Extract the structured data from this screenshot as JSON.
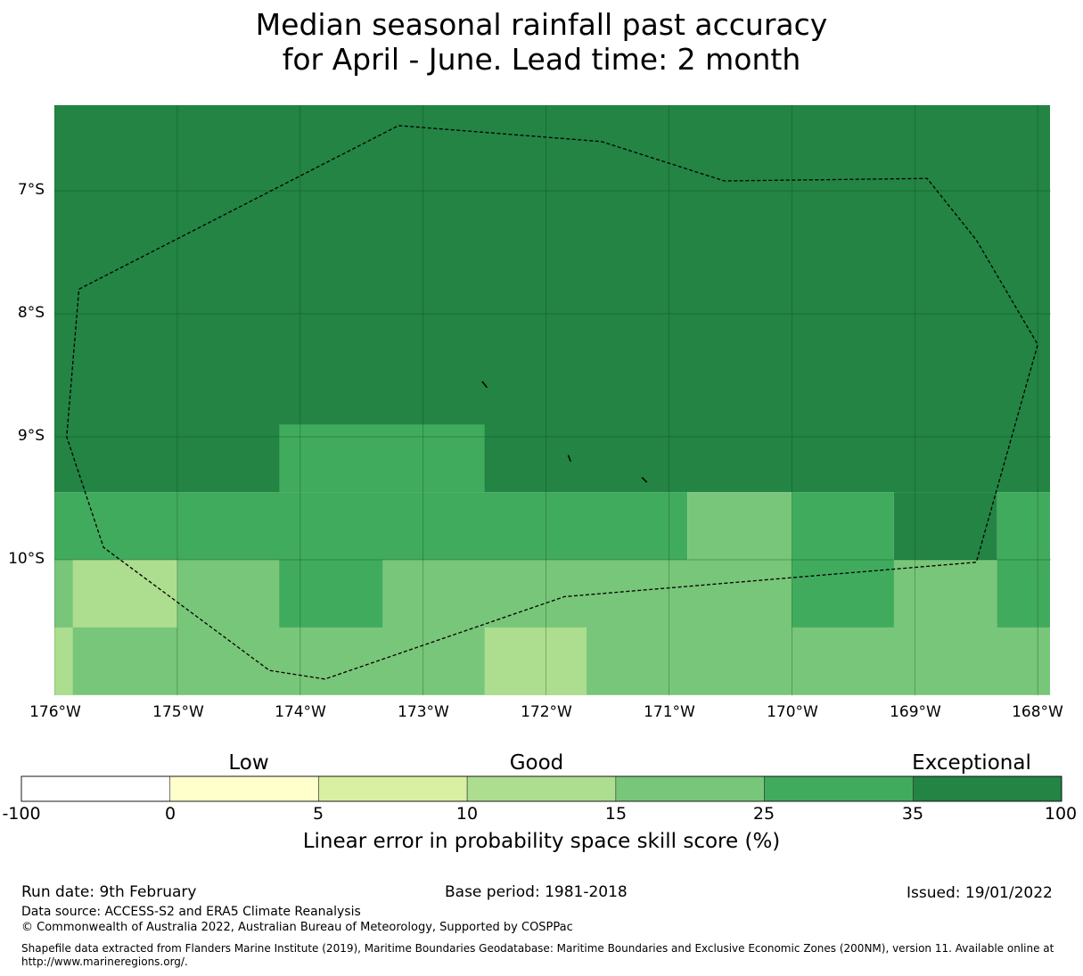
{
  "title": {
    "line1": "Median seasonal rainfall past accuracy",
    "line2": "for April - June. Lead time: 2 month"
  },
  "map": {
    "lat_labels": [
      "7°S",
      "8°S",
      "9°S",
      "10°S"
    ],
    "lon_labels": [
      "176°W",
      "175°W",
      "174°W",
      "173°W",
      "172°W",
      "171°W",
      "170°W",
      "169°W",
      "168°W"
    ],
    "lon_range": [
      -176.0,
      -167.9
    ],
    "lat_range": [
      -11.1,
      -6.3
    ],
    "grid_cells": [
      {
        "lon": [
          -176.0,
          -167.9
        ],
        "lat": [
          -9.45,
          -6.3
        ],
        "category": "35-100"
      },
      {
        "lon": [
          -174.17,
          -172.5
        ],
        "lat": [
          -9.45,
          -8.9
        ],
        "category": "25-35"
      },
      {
        "lon": [
          -176.0,
          -170.85
        ],
        "lat": [
          -10.0,
          -9.45
        ],
        "category": "25-35"
      },
      {
        "lon": [
          -170.85,
          -170.0
        ],
        "lat": [
          -10.0,
          -9.45
        ],
        "category": "15-25"
      },
      {
        "lon": [
          -170.0,
          -169.17
        ],
        "lat": [
          -10.0,
          -9.45
        ],
        "category": "25-35"
      },
      {
        "lon": [
          -169.17,
          -168.33
        ],
        "lat": [
          -10.0,
          -9.45
        ],
        "category": "35-100"
      },
      {
        "lon": [
          -168.33,
          -167.9
        ],
        "lat": [
          -10.0,
          -9.45
        ],
        "category": "25-35"
      },
      {
        "lon": [
          -176.0,
          -167.9
        ],
        "lat": [
          -11.1,
          -10.0
        ],
        "category": "15-25"
      },
      {
        "lon": [
          -175.85,
          -175.0
        ],
        "lat": [
          -10.55,
          -10.0
        ],
        "category": "10-15"
      },
      {
        "lon": [
          -174.17,
          -173.33
        ],
        "lat": [
          -10.55,
          -10.0
        ],
        "category": "25-35"
      },
      {
        "lon": [
          -170.0,
          -169.17
        ],
        "lat": [
          -10.55,
          -10.0
        ],
        "category": "25-35"
      },
      {
        "lon": [
          -168.33,
          -167.9
        ],
        "lat": [
          -10.55,
          -10.0
        ],
        "category": "25-35"
      },
      {
        "lon": [
          -176.0,
          -175.85
        ],
        "lat": [
          -11.1,
          -10.55
        ],
        "category": "10-15"
      },
      {
        "lon": [
          -172.5,
          -171.67
        ],
        "lat": [
          -11.1,
          -10.55
        ],
        "category": "10-15"
      }
    ],
    "eez_boundary": [
      [
        -175.8,
        -7.8
      ],
      [
        -173.2,
        -6.47
      ],
      [
        -171.55,
        -6.6
      ],
      [
        -170.55,
        -6.92
      ],
      [
        -168.9,
        -6.9
      ],
      [
        -168.5,
        -7.4
      ],
      [
        -168.0,
        -8.25
      ],
      [
        -168.5,
        -10.02
      ],
      [
        -171.85,
        -10.3
      ],
      [
        -173.8,
        -10.97
      ],
      [
        -174.25,
        -10.9
      ],
      [
        -175.6,
        -9.9
      ],
      [
        -175.9,
        -9.0
      ],
      [
        -175.8,
        -7.8
      ]
    ],
    "islands": [
      [
        [
          -172.52,
          -8.55
        ],
        [
          -172.48,
          -8.6
        ]
      ],
      [
        [
          -171.82,
          -9.15
        ],
        [
          -171.8,
          -9.2
        ]
      ],
      [
        [
          -171.22,
          -9.33
        ],
        [
          -171.18,
          -9.37
        ]
      ]
    ]
  },
  "colorbar": {
    "categories": [
      "Low",
      "Good",
      "Exceptional"
    ],
    "ticks": [
      "-100",
      "0",
      "5",
      "10",
      "15",
      "25",
      "35",
      "100"
    ],
    "colors": [
      "#ffffff",
      "#ffffcc",
      "#d9f0a3",
      "#addd8e",
      "#78c679",
      "#41ab5d",
      "#238443"
    ],
    "label": "Linear error in probability space skill score (%)"
  },
  "category_colors": {
    "10-15": "#addd8e",
    "15-25": "#78c679",
    "25-35": "#41ab5d",
    "35-100": "#238443"
  },
  "footer": {
    "run_date": "Run date: 9th February",
    "base_period": "Base period: 1981-2018",
    "issued": "Issued: 19/01/2022",
    "data_source": "Data source: ACCESS-S2 and ERA5 Climate Reanalysis",
    "copyright": "© Commonwealth of Australia 2022, Australian Bureau of Meteorology, Supported by COSPPac",
    "shapefile_line1": "Shapefile data extracted from Flanders Marine Institute (2019), Maritime Boundaries Geodatabase: Maritime Boundaries and Exclusive Economic Zones (200NM), version 11. Available online at",
    "shapefile_line2": "http://www.marineregions.org/."
  }
}
